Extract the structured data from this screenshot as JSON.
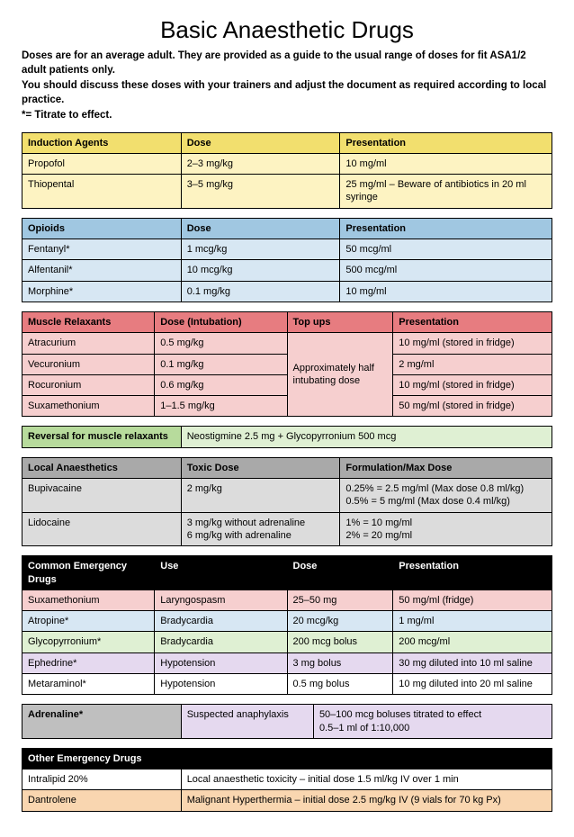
{
  "title": "Basic Anaesthetic Drugs",
  "intro": {
    "line1": "Doses are for an average adult. They are provided as a guide to the usual range of doses for fit ASA1/2 adult patients only.",
    "line2": "You should discuss these doses with your trainers and adjust the document as required according to local practice.",
    "line3": "*= Titrate to effect."
  },
  "colors": {
    "yellow_header": "#f2df6e",
    "yellow_body": "#fdf3c2",
    "blue_header": "#a0c7e1",
    "blue_body": "#d7e7f3",
    "red_header": "#e77c80",
    "red_body": "#f6cfcf",
    "green_header": "#b7db9c",
    "green_body": "#dff0d3",
    "grey_header": "#a9a9a9",
    "grey_body": "#dcdcdc",
    "black_header": "#000000",
    "white": "#ffffff",
    "lilac_body": "#e5d9ef",
    "orange_body": "#f9d6b0",
    "dkgrey_body": "#bfbfbf"
  },
  "induction": {
    "h1": "Induction Agents",
    "h2": "Dose",
    "h3": "Presentation",
    "rows": [
      {
        "c1": "Propofol",
        "c2": "2–3 mg/kg",
        "c3": "10 mg/ml"
      },
      {
        "c1": "Thiopental",
        "c2": "3–5 mg/kg",
        "c3": "25 mg/ml – Beware of antibiotics in 20 ml syringe"
      }
    ]
  },
  "opioids": {
    "h1": "Opioids",
    "h2": "Dose",
    "h3": "Presentation",
    "rows": [
      {
        "c1": "Fentanyl*",
        "c2": "1 mcg/kg",
        "c3": "50 mcg/ml"
      },
      {
        "c1": "Alfentanil*",
        "c2": "10 mcg/kg",
        "c3": "500 mcg/ml"
      },
      {
        "c1": "Morphine*",
        "c2": "0.1 mg/kg",
        "c3": "10 mg/ml"
      }
    ]
  },
  "relaxants": {
    "h1": "Muscle Relaxants",
    "h2": "Dose (Intubation)",
    "h3": "Top ups",
    "h4": "Presentation",
    "topups": "Approximately half intubating dose",
    "rows": [
      {
        "c1": "Atracurium",
        "c2": "0.5 mg/kg",
        "c4": "10 mg/ml (stored in fridge)"
      },
      {
        "c1": "Vecuronium",
        "c2": "0.1 mg/kg",
        "c4": "2 mg/ml"
      },
      {
        "c1": "Rocuronium",
        "c2": "0.6 mg/kg",
        "c4": "10 mg/ml (stored in fridge)"
      },
      {
        "c1": "Suxamethonium",
        "c2": "1–1.5 mg/kg",
        "c4": "50 mg/ml (stored in fridge)"
      }
    ]
  },
  "reversal": {
    "label": "Reversal for muscle relaxants",
    "value": "Neostigmine 2.5 mg + Glycopyrronium 500 mcg"
  },
  "local": {
    "h1": "Local Anaesthetics",
    "h2": "Toxic Dose",
    "h3": "Formulation/Max Dose",
    "rows": [
      {
        "c1": "Bupivacaine",
        "c2": "2 mg/kg",
        "c3": "0.25% = 2.5 mg/ml (Max dose 0.8 ml/kg)\n0.5% = 5 mg/ml (Max dose 0.4 ml/kg)"
      },
      {
        "c1": "Lidocaine",
        "c2": "3 mg/kg without adrenaline\n6 mg/kg with adrenaline",
        "c3": "1% = 10 mg/ml\n2% =  20 mg/ml"
      }
    ]
  },
  "emergency": {
    "h1": "Common Emergency Drugs",
    "h2": "Use",
    "h3": "Dose",
    "h4": "Presentation",
    "rows": [
      {
        "c1": "Suxamethonium",
        "c2": "Laryngospasm",
        "c3": "25–50 mg",
        "c4": "50 mg/ml (fridge)",
        "bg": "red_body"
      },
      {
        "c1": "Atropine*",
        "c2": "Bradycardia",
        "c3": "20 mcg/kg",
        "c4": "1 mg/ml",
        "bg": "blue_body"
      },
      {
        "c1": "Glycopyrronium*",
        "c2": "Bradycardia",
        "c3": "200 mcg bolus",
        "c4": "200 mcg/ml",
        "bg": "green_body"
      },
      {
        "c1": "Ephedrine*",
        "c2": "Hypotension",
        "c3": "3 mg bolus",
        "c4": "30 mg diluted into 10 ml saline",
        "bg": "lilac_body"
      },
      {
        "c1": "Metaraminol*",
        "c2": "Hypotension",
        "c3": "0.5 mg bolus",
        "c4": "10 mg diluted into 20 ml saline",
        "bg": "white"
      }
    ]
  },
  "adrenaline": {
    "c1": "Adrenaline*",
    "c2": "Suspected anaphylaxis",
    "c3": "50–100 mcg boluses titrated to effect\n0.5–1 ml of 1:10,000"
  },
  "other": {
    "h1": "Other Emergency Drugs",
    "rows": [
      {
        "c1": "Intralipid 20%",
        "c2": "Local anaesthetic toxicity – initial dose 1.5 ml/kg IV over 1 min",
        "bg": "white"
      },
      {
        "c1": "Dantrolene",
        "c2": "Malignant Hyperthermia – initial dose 2.5 mg/kg IV (9 vials for 70 kg Px)",
        "bg": "orange_body"
      }
    ]
  }
}
